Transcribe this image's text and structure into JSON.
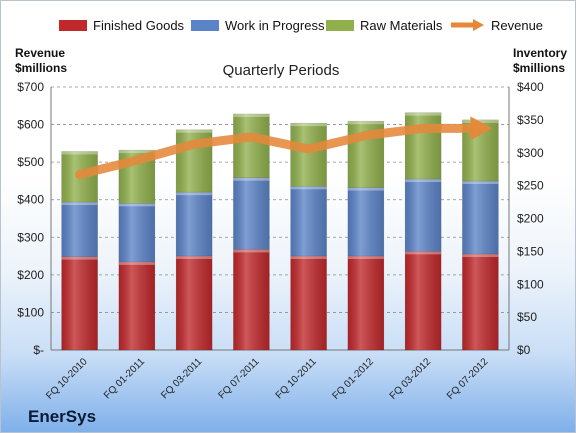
{
  "chart_data": {
    "type": "bar",
    "title": "Quarterly Periods",
    "categories": [
      "FQ 10-2010",
      "FQ 01-2011",
      "FQ 03-2011",
      "FQ 07-2011",
      "FQ 10-2011",
      "FQ 01-2012",
      "FQ 03-2012",
      "FQ 07-2012"
    ],
    "series": [
      {
        "name": "Finished Goods",
        "axis": "right",
        "color": "#c0282b",
        "values": [
          142,
          134,
          143,
          153,
          143,
          143,
          150,
          146
        ]
      },
      {
        "name": "Work in Progress",
        "axis": "right",
        "color": "#5b83c7",
        "values": [
          83,
          89,
          97,
          109,
          106,
          104,
          110,
          111
        ]
      },
      {
        "name": "Raw Materials",
        "axis": "right",
        "color": "#90b04c",
        "values": [
          77,
          81,
          95,
          97,
          96,
          101,
          101,
          93
        ]
      },
      {
        "name": "Revenue",
        "axis": "left",
        "type": "line",
        "color": "#e6873a",
        "values": [
          467,
          505,
          548,
          567,
          535,
          571,
          590,
          590
        ]
      }
    ],
    "left_axis": {
      "title_line1": "Revenue",
      "title_line2": "$millions",
      "ylim": [
        0,
        700
      ],
      "ticks": [
        "$-",
        "$100",
        "$200",
        "$300",
        "$400",
        "$500",
        "$600",
        "$700"
      ]
    },
    "right_axis": {
      "title_line1": "Inventory",
      "title_line2": "$millions",
      "ylim": [
        0,
        400
      ],
      "ticks": [
        "$0",
        "$50",
        "$100",
        "$150",
        "$200",
        "$250",
        "$300",
        "$350",
        "$400"
      ]
    },
    "grid": true,
    "legend": "top"
  },
  "brand": "EnerSys"
}
